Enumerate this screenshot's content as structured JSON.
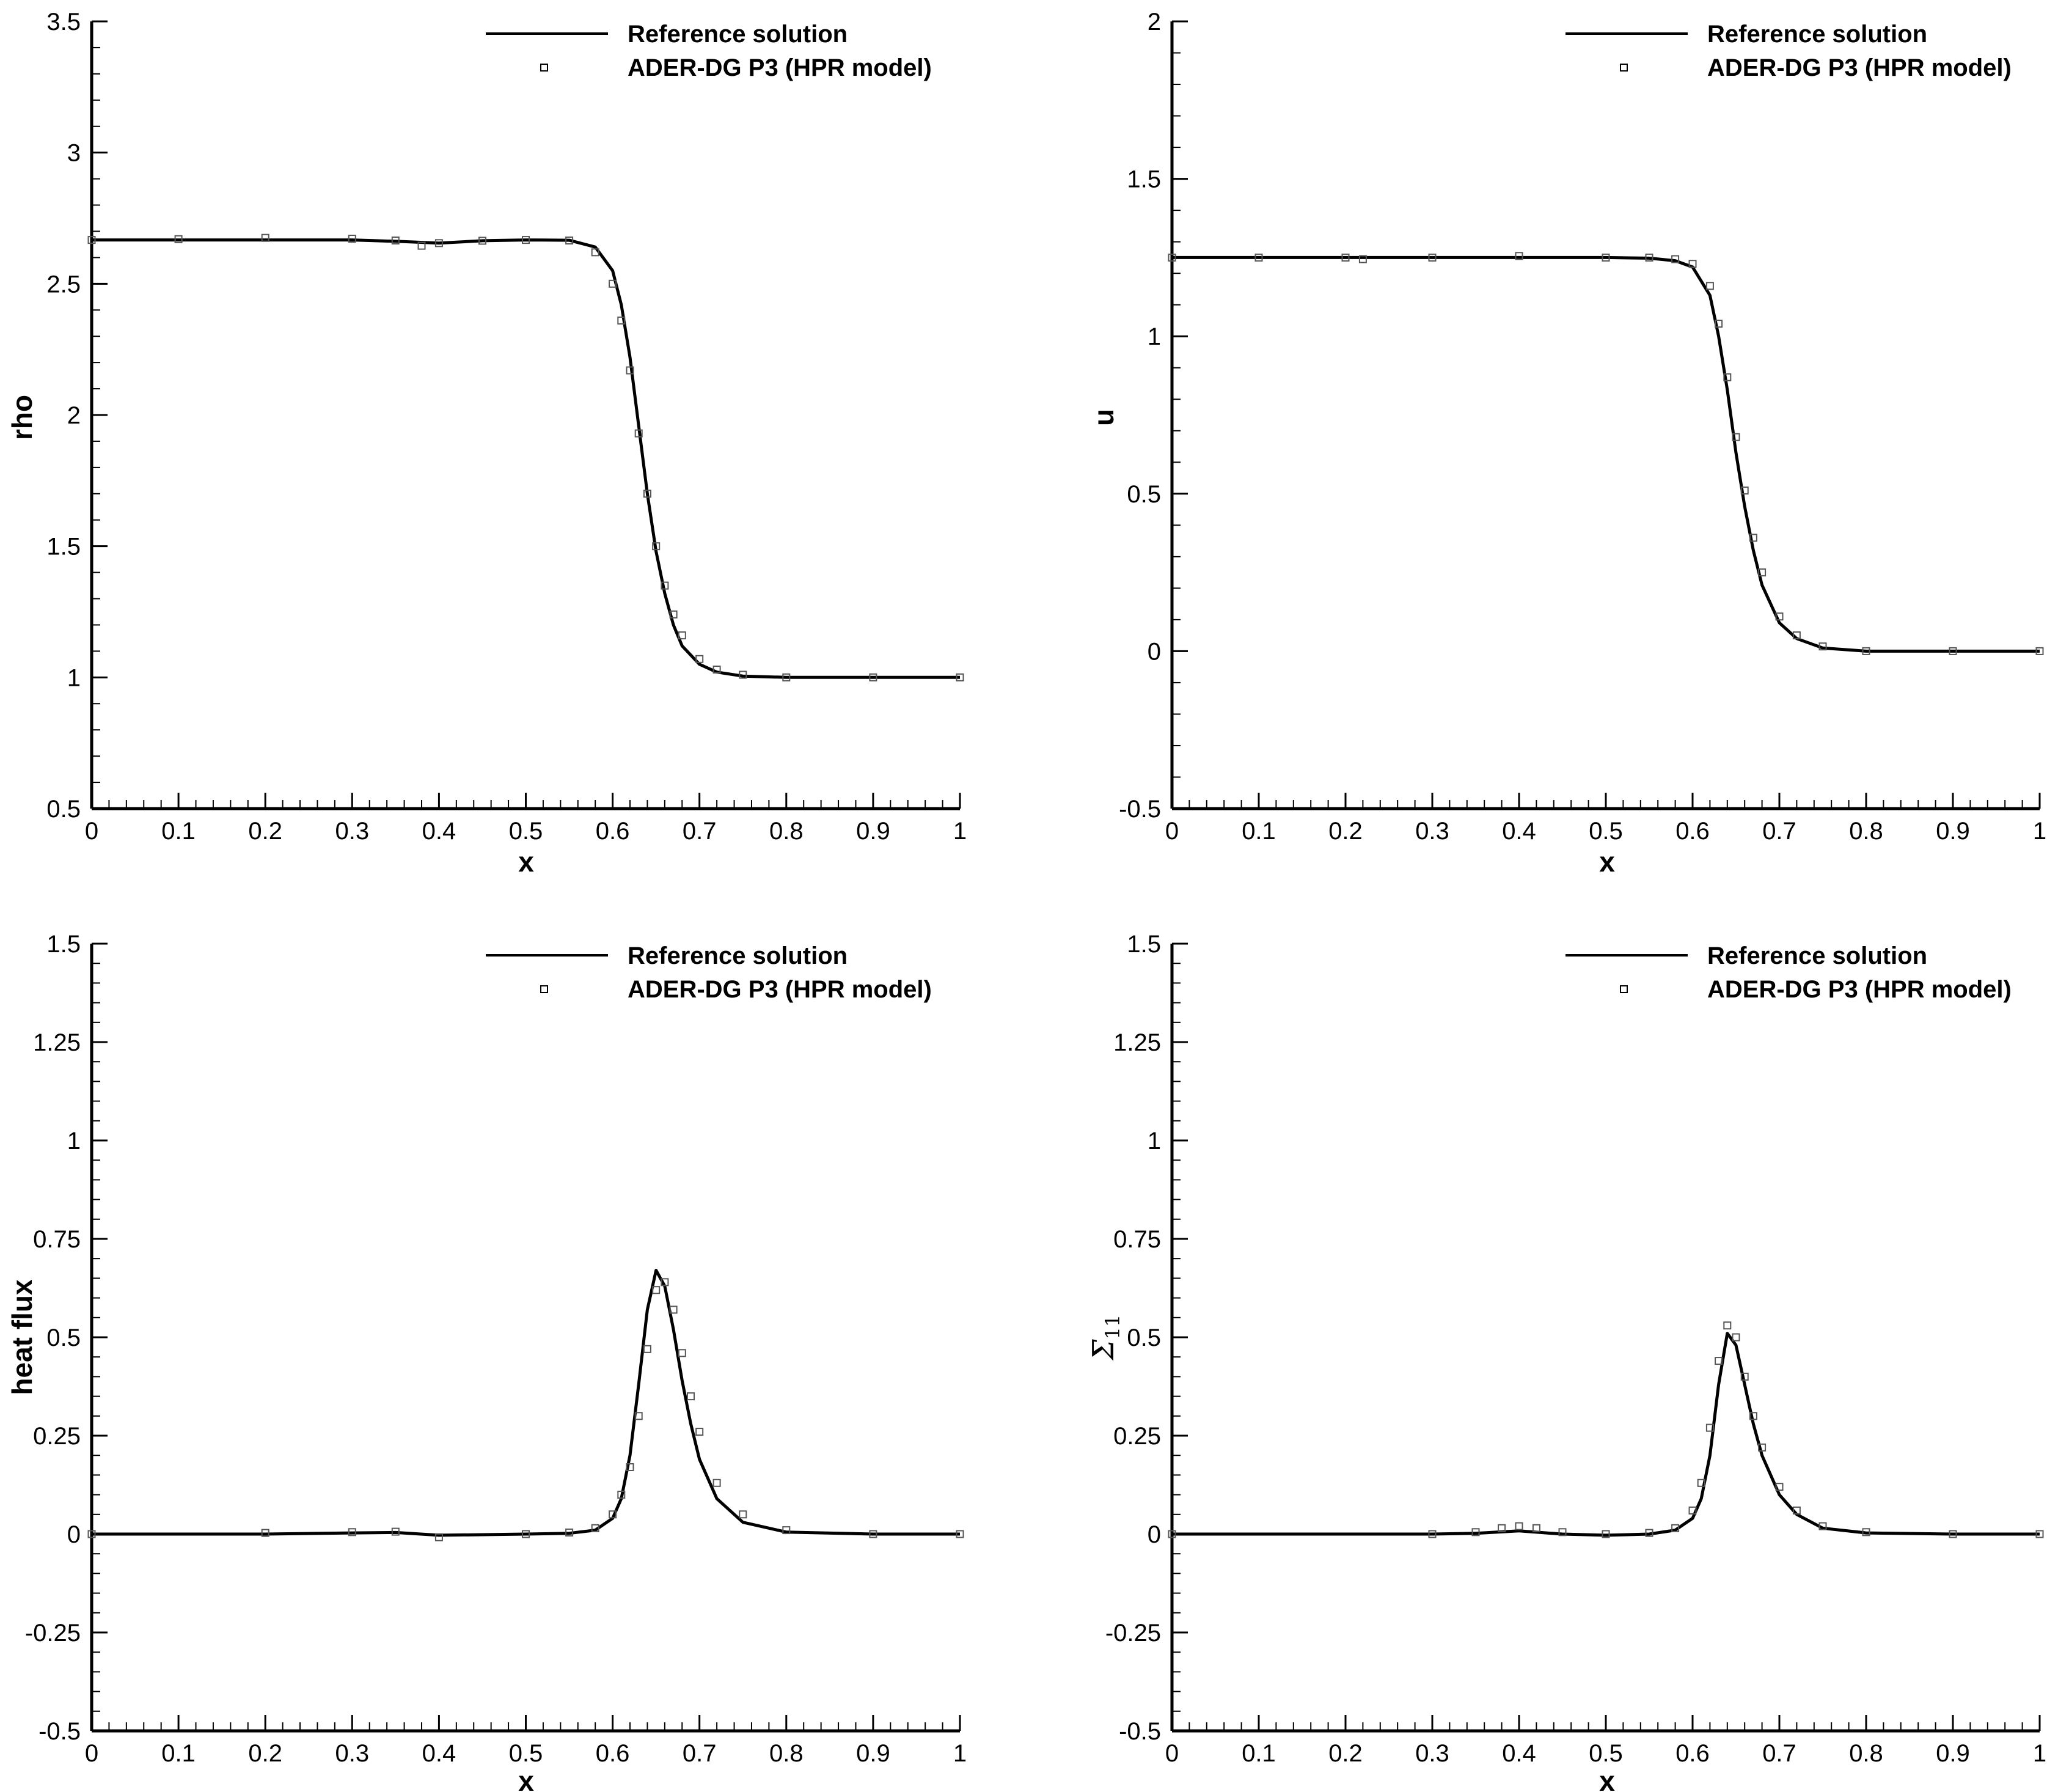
{
  "chart_data": [
    {
      "type": "line",
      "xlabel": "x",
      "ylabel": "rho",
      "xlim": [
        0,
        1
      ],
      "ylim": [
        0.5,
        3.5
      ],
      "x_ticks": [
        "0",
        "0.1",
        "0.2",
        "0.3",
        "0.4",
        "0.5",
        "0.6",
        "0.7",
        "0.8",
        "0.9",
        "1"
      ],
      "y_ticks": [
        "0.5",
        "1",
        "1.5",
        "2",
        "2.5",
        "3",
        "3.5"
      ],
      "legend": [
        "Reference solution",
        "ADER-DG P3 (HPR model)"
      ],
      "legend_position": "top-right",
      "series": [
        {
          "name": "Reference solution",
          "style": "solid-line",
          "x": [
            0,
            0.1,
            0.2,
            0.3,
            0.35,
            0.4,
            0.45,
            0.5,
            0.55,
            0.58,
            0.6,
            0.61,
            0.62,
            0.63,
            0.64,
            0.65,
            0.66,
            0.67,
            0.68,
            0.7,
            0.72,
            0.75,
            0.8,
            0.9,
            1
          ],
          "values": [
            2.667,
            2.667,
            2.667,
            2.667,
            2.662,
            2.655,
            2.664,
            2.667,
            2.666,
            2.64,
            2.55,
            2.42,
            2.22,
            1.96,
            1.7,
            1.48,
            1.32,
            1.2,
            1.12,
            1.05,
            1.02,
            1.005,
            1.0,
            1.0,
            1.0
          ]
        },
        {
          "name": "ADER-DG P3 (HPR model)",
          "style": "open-square-markers",
          "x": [
            0,
            0.1,
            0.2,
            0.3,
            0.35,
            0.38,
            0.4,
            0.45,
            0.5,
            0.55,
            0.58,
            0.6,
            0.61,
            0.62,
            0.63,
            0.64,
            0.65,
            0.66,
            0.67,
            0.68,
            0.7,
            0.72,
            0.75,
            0.8,
            0.9,
            1
          ],
          "values": [
            2.667,
            2.67,
            2.675,
            2.672,
            2.665,
            2.645,
            2.655,
            2.664,
            2.667,
            2.665,
            2.62,
            2.5,
            2.36,
            2.17,
            1.93,
            1.7,
            1.5,
            1.35,
            1.24,
            1.16,
            1.07,
            1.03,
            1.01,
            1.0,
            1.0,
            1.0
          ]
        }
      ]
    },
    {
      "type": "line",
      "xlabel": "x",
      "ylabel": "u",
      "xlim": [
        0,
        1
      ],
      "ylim": [
        -0.5,
        2
      ],
      "x_ticks": [
        "0",
        "0.1",
        "0.2",
        "0.3",
        "0.4",
        "0.5",
        "0.6",
        "0.7",
        "0.8",
        "0.9",
        "1"
      ],
      "y_ticks": [
        "-0.5",
        "0",
        "0.5",
        "1",
        "1.5",
        "2"
      ],
      "legend": [
        "Reference solution",
        "ADER-DG P3 (HPR model)"
      ],
      "legend_position": "top-right",
      "series": [
        {
          "name": "Reference solution",
          "style": "solid-line",
          "x": [
            0,
            0.1,
            0.2,
            0.3,
            0.4,
            0.5,
            0.55,
            0.58,
            0.6,
            0.62,
            0.63,
            0.64,
            0.65,
            0.66,
            0.67,
            0.68,
            0.7,
            0.72,
            0.75,
            0.8,
            0.9,
            1
          ],
          "values": [
            1.25,
            1.25,
            1.25,
            1.25,
            1.25,
            1.25,
            1.248,
            1.24,
            1.22,
            1.13,
            1.0,
            0.83,
            0.63,
            0.46,
            0.32,
            0.21,
            0.09,
            0.04,
            0.01,
            0.0,
            0.0,
            0.0
          ]
        },
        {
          "name": "ADER-DG P3 (HPR model)",
          "style": "open-square-markers",
          "x": [
            0,
            0.1,
            0.2,
            0.22,
            0.3,
            0.4,
            0.5,
            0.55,
            0.58,
            0.6,
            0.62,
            0.63,
            0.64,
            0.65,
            0.66,
            0.67,
            0.68,
            0.7,
            0.72,
            0.75,
            0.8,
            0.9,
            1
          ],
          "values": [
            1.25,
            1.25,
            1.25,
            1.245,
            1.25,
            1.255,
            1.25,
            1.25,
            1.245,
            1.23,
            1.16,
            1.04,
            0.87,
            0.68,
            0.51,
            0.36,
            0.25,
            0.11,
            0.05,
            0.015,
            0.0,
            0.0,
            0.0
          ]
        }
      ]
    },
    {
      "type": "line",
      "xlabel": "x",
      "ylabel": "heat flux",
      "xlim": [
        0,
        1
      ],
      "ylim": [
        -0.5,
        1.5
      ],
      "x_ticks": [
        "0",
        "0.1",
        "0.2",
        "0.3",
        "0.4",
        "0.5",
        "0.6",
        "0.7",
        "0.8",
        "0.9",
        "1"
      ],
      "y_ticks": [
        "-0.5",
        "-0.25",
        "0",
        "0.25",
        "0.5",
        "0.75",
        "1",
        "1.25",
        "1.5"
      ],
      "legend": [
        "Reference solution",
        "ADER-DG P3 (HPR model)"
      ],
      "legend_position": "top-right",
      "series": [
        {
          "name": "Reference solution",
          "style": "solid-line",
          "x": [
            0,
            0.2,
            0.3,
            0.35,
            0.4,
            0.5,
            0.55,
            0.58,
            0.6,
            0.61,
            0.62,
            0.63,
            0.64,
            0.65,
            0.66,
            0.67,
            0.68,
            0.69,
            0.7,
            0.72,
            0.75,
            0.8,
            0.9,
            1
          ],
          "values": [
            0,
            0,
            0.003,
            0.004,
            -0.003,
            0.0,
            0.002,
            0.01,
            0.04,
            0.09,
            0.2,
            0.38,
            0.57,
            0.67,
            0.63,
            0.52,
            0.39,
            0.28,
            0.19,
            0.09,
            0.03,
            0.005,
            0.0,
            0.0
          ]
        },
        {
          "name": "ADER-DG P3 (HPR model)",
          "style": "open-square-markers",
          "x": [
            0,
            0.2,
            0.3,
            0.35,
            0.4,
            0.5,
            0.55,
            0.58,
            0.6,
            0.61,
            0.62,
            0.63,
            0.64,
            0.65,
            0.66,
            0.67,
            0.68,
            0.69,
            0.7,
            0.72,
            0.75,
            0.8,
            0.9,
            1
          ],
          "values": [
            0,
            0.003,
            0.005,
            0.006,
            -0.008,
            0.0,
            0.004,
            0.015,
            0.05,
            0.1,
            0.17,
            0.3,
            0.47,
            0.62,
            0.64,
            0.57,
            0.46,
            0.35,
            0.26,
            0.13,
            0.05,
            0.01,
            0.0,
            0.0
          ]
        }
      ]
    },
    {
      "type": "line",
      "xlabel": "x",
      "ylabel_symbol": "Σ",
      "ylabel_subscript": "11",
      "xlim": [
        0,
        1
      ],
      "ylim": [
        -0.5,
        1.5
      ],
      "x_ticks": [
        "0",
        "0.1",
        "0.2",
        "0.3",
        "0.4",
        "0.5",
        "0.6",
        "0.7",
        "0.8",
        "0.9",
        "1"
      ],
      "y_ticks": [
        "-0.5",
        "-0.25",
        "0",
        "0.25",
        "0.5",
        "0.75",
        "1",
        "1.25",
        "1.5"
      ],
      "legend": [
        "Reference solution",
        "ADER-DG P3 (HPR model)"
      ],
      "legend_position": "top-right",
      "series": [
        {
          "name": "Reference solution",
          "style": "solid-line",
          "x": [
            0,
            0.3,
            0.35,
            0.4,
            0.45,
            0.5,
            0.55,
            0.58,
            0.6,
            0.61,
            0.62,
            0.63,
            0.64,
            0.65,
            0.66,
            0.67,
            0.68,
            0.7,
            0.72,
            0.75,
            0.8,
            0.9,
            1
          ],
          "values": [
            0,
            0.0,
            0.002,
            0.008,
            0.0,
            -0.003,
            0.0,
            0.01,
            0.04,
            0.09,
            0.2,
            0.38,
            0.51,
            0.48,
            0.38,
            0.28,
            0.2,
            0.1,
            0.05,
            0.015,
            0.003,
            0.0,
            0.0
          ]
        },
        {
          "name": "ADER-DG P3 (HPR model)",
          "style": "open-square-markers",
          "x": [
            0,
            0.3,
            0.35,
            0.38,
            0.4,
            0.42,
            0.45,
            0.5,
            0.55,
            0.58,
            0.6,
            0.61,
            0.62,
            0.63,
            0.64,
            0.65,
            0.66,
            0.67,
            0.68,
            0.7,
            0.72,
            0.75,
            0.8,
            0.9,
            1
          ],
          "values": [
            0,
            0.0,
            0.005,
            0.015,
            0.02,
            0.015,
            0.005,
            0.0,
            0.003,
            0.015,
            0.06,
            0.13,
            0.27,
            0.44,
            0.53,
            0.5,
            0.4,
            0.3,
            0.22,
            0.12,
            0.06,
            0.02,
            0.005,
            0.0,
            0.0
          ]
        }
      ]
    }
  ]
}
